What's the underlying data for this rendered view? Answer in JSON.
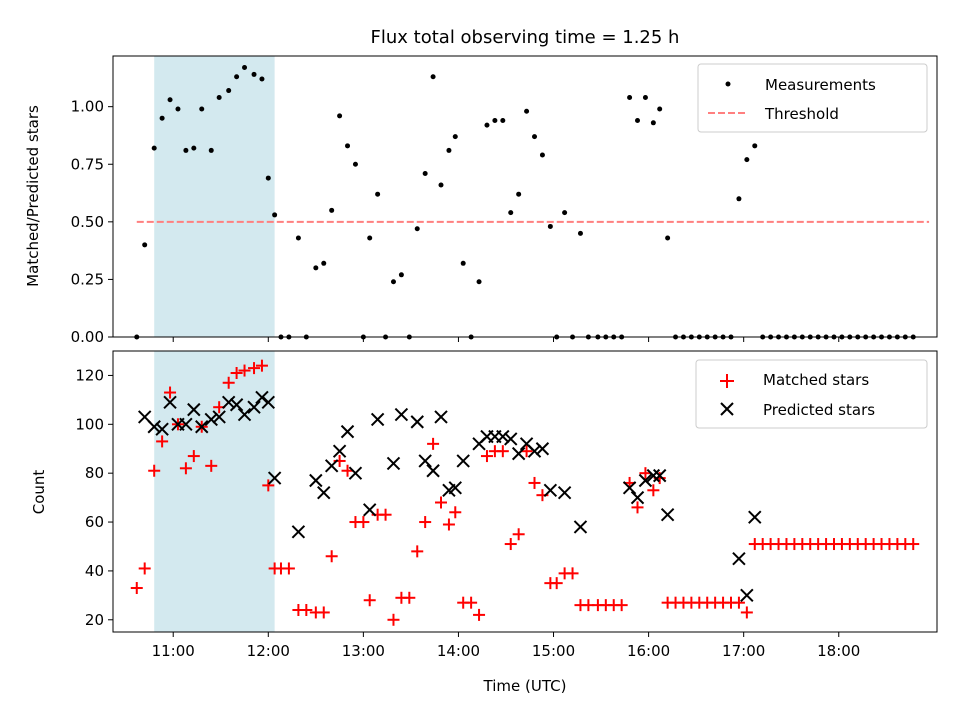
{
  "chart_data": [
    {
      "type": "scatter",
      "title": "Flux total observing time = 1.25 h",
      "ylabel": "Matched/Predicted stars",
      "ylim": [
        0,
        1.22
      ],
      "yticks": [
        "0.00",
        "0.25",
        "0.50",
        "0.75",
        "1.00"
      ],
      "xlim": [
        "10:22",
        "19:02"
      ],
      "shaded_span": [
        "10:48",
        "12:04"
      ],
      "shade_color": "#d3e9ef",
      "legend": {
        "position": "top-right",
        "entries": [
          {
            "label": "Measurements",
            "marker": "dot",
            "color": "#000000"
          },
          {
            "label": "Threshold",
            "marker": "dashed-line",
            "color": "#ff7f7f"
          }
        ]
      },
      "threshold": {
        "value": 0.5,
        "x": [
          "10:37",
          "18:57"
        ],
        "color": "#ff7f7f"
      },
      "series": [
        {
          "name": "Measurements",
          "color": "#000000",
          "points": [
            [
              "10:37",
              0.0
            ],
            [
              "10:42",
              0.4
            ],
            [
              "10:48",
              0.82
            ],
            [
              "10:53",
              0.95
            ],
            [
              "10:58",
              1.03
            ],
            [
              "11:03",
              0.99
            ],
            [
              "11:08",
              0.81
            ],
            [
              "11:13",
              0.82
            ],
            [
              "11:18",
              0.99
            ],
            [
              "11:24",
              0.81
            ],
            [
              "11:29",
              1.04
            ],
            [
              "11:35",
              1.07
            ],
            [
              "11:40",
              1.13
            ],
            [
              "11:45",
              1.17
            ],
            [
              "11:51",
              1.14
            ],
            [
              "11:56",
              1.12
            ],
            [
              "12:00",
              0.69
            ],
            [
              "12:04",
              0.53
            ],
            [
              "12:08",
              0.0
            ],
            [
              "12:13",
              0.0
            ],
            [
              "12:19",
              0.43
            ],
            [
              "12:24",
              0.0
            ],
            [
              "12:30",
              0.3
            ],
            [
              "12:35",
              0.32
            ],
            [
              "12:40",
              0.55
            ],
            [
              "12:45",
              0.96
            ],
            [
              "12:50",
              0.83
            ],
            [
              "12:55",
              0.75
            ],
            [
              "13:00",
              0.0
            ],
            [
              "13:04",
              0.43
            ],
            [
              "13:09",
              0.62
            ],
            [
              "13:14",
              0.0
            ],
            [
              "13:19",
              0.24
            ],
            [
              "13:24",
              0.27
            ],
            [
              "13:29",
              0.0
            ],
            [
              "13:34",
              0.47
            ],
            [
              "13:39",
              0.71
            ],
            [
              "13:44",
              1.13
            ],
            [
              "13:49",
              0.66
            ],
            [
              "13:54",
              0.81
            ],
            [
              "13:58",
              0.87
            ],
            [
              "14:03",
              0.32
            ],
            [
              "14:08",
              0.0
            ],
            [
              "14:13",
              0.24
            ],
            [
              "14:18",
              0.92
            ],
            [
              "14:23",
              0.94
            ],
            [
              "14:28",
              0.94
            ],
            [
              "14:33",
              0.54
            ],
            [
              "14:38",
              0.62
            ],
            [
              "14:43",
              0.98
            ],
            [
              "14:48",
              0.87
            ],
            [
              "14:53",
              0.79
            ],
            [
              "14:58",
              0.48
            ],
            [
              "15:02",
              0.0
            ],
            [
              "15:07",
              0.54
            ],
            [
              "15:12",
              0.0
            ],
            [
              "15:17",
              0.45
            ],
            [
              "15:22",
              0.0
            ],
            [
              "15:28",
              0.0
            ],
            [
              "15:33",
              0.0
            ],
            [
              "15:38",
              0.0
            ],
            [
              "15:43",
              0.0
            ],
            [
              "15:48",
              1.04
            ],
            [
              "15:53",
              0.94
            ],
            [
              "15:58",
              1.04
            ],
            [
              "16:03",
              0.93
            ],
            [
              "16:07",
              0.99
            ],
            [
              "16:12",
              0.43
            ],
            [
              "16:17",
              0.0
            ],
            [
              "16:22",
              0.0
            ],
            [
              "16:27",
              0.0
            ],
            [
              "16:32",
              0.0
            ],
            [
              "16:37",
              0.0
            ],
            [
              "16:42",
              0.0
            ],
            [
              "16:47",
              0.0
            ],
            [
              "16:52",
              0.0
            ],
            [
              "16:57",
              0.6
            ],
            [
              "17:02",
              0.77
            ],
            [
              "17:07",
              0.83
            ],
            [
              "17:12",
              0.0
            ],
            [
              "17:17",
              0.0
            ],
            [
              "17:22",
              0.0
            ],
            [
              "17:27",
              0.0
            ],
            [
              "17:32",
              0.0
            ],
            [
              "17:37",
              0.0
            ],
            [
              "17:42",
              0.0
            ],
            [
              "17:47",
              0.0
            ],
            [
              "17:52",
              0.0
            ],
            [
              "17:57",
              0.0
            ],
            [
              "18:02",
              0.0
            ],
            [
              "18:07",
              0.0
            ],
            [
              "18:12",
              0.0
            ],
            [
              "18:17",
              0.0
            ],
            [
              "18:22",
              0.0
            ],
            [
              "18:27",
              0.0
            ],
            [
              "18:32",
              0.0
            ],
            [
              "18:37",
              0.0
            ],
            [
              "18:42",
              0.0
            ],
            [
              "18:47",
              0.0
            ]
          ]
        }
      ]
    },
    {
      "type": "scatter",
      "xlabel": "Time (UTC)",
      "ylabel": "Count",
      "ylim": [
        15,
        130
      ],
      "yticks": [
        "20",
        "40",
        "60",
        "80",
        "100",
        "120"
      ],
      "xlim": [
        "10:22",
        "19:02"
      ],
      "xticks": [
        "11:00",
        "12:00",
        "13:00",
        "14:00",
        "15:00",
        "16:00",
        "17:00",
        "18:00"
      ],
      "shaded_span": [
        "10:48",
        "12:04"
      ],
      "shade_color": "#d3e9ef",
      "legend": {
        "position": "top-right",
        "entries": [
          {
            "label": "Matched stars",
            "marker": "plus",
            "color": "#ff0000"
          },
          {
            "label": "Predicted stars",
            "marker": "x",
            "color": "#000000"
          }
        ]
      },
      "series": [
        {
          "name": "Matched stars",
          "color": "#ff0000",
          "points": [
            [
              "10:37",
              33
            ],
            [
              "10:42",
              41
            ],
            [
              "10:48",
              81
            ],
            [
              "10:53",
              93
            ],
            [
              "10:58",
              113
            ],
            [
              "11:03",
              100
            ],
            [
              "11:08",
              82
            ],
            [
              "11:13",
              87
            ],
            [
              "11:18",
              99
            ],
            [
              "11:24",
              83
            ],
            [
              "11:29",
              107
            ],
            [
              "11:35",
              117
            ],
            [
              "11:40",
              121
            ],
            [
              "11:45",
              122
            ],
            [
              "11:51",
              123
            ],
            [
              "11:56",
              124
            ],
            [
              "12:00",
              75
            ],
            [
              "12:04",
              41
            ],
            [
              "12:08",
              41
            ],
            [
              "12:13",
              41
            ],
            [
              "12:19",
              24
            ],
            [
              "12:24",
              24
            ],
            [
              "12:30",
              23
            ],
            [
              "12:35",
              23
            ],
            [
              "12:40",
              46
            ],
            [
              "12:45",
              85
            ],
            [
              "12:50",
              81
            ],
            [
              "12:55",
              60
            ],
            [
              "13:00",
              60
            ],
            [
              "13:04",
              28
            ],
            [
              "13:09",
              63
            ],
            [
              "13:14",
              63
            ],
            [
              "13:19",
              20
            ],
            [
              "13:24",
              29
            ],
            [
              "13:29",
              29
            ],
            [
              "13:34",
              48
            ],
            [
              "13:39",
              60
            ],
            [
              "13:44",
              92
            ],
            [
              "13:49",
              68
            ],
            [
              "13:54",
              59
            ],
            [
              "13:58",
              64
            ],
            [
              "14:03",
              27
            ],
            [
              "14:08",
              27
            ],
            [
              "14:13",
              22
            ],
            [
              "14:18",
              87
            ],
            [
              "14:23",
              89
            ],
            [
              "14:28",
              89
            ],
            [
              "14:33",
              51
            ],
            [
              "14:38",
              55
            ],
            [
              "14:43",
              89
            ],
            [
              "14:48",
              76
            ],
            [
              "14:53",
              71
            ],
            [
              "14:58",
              35
            ],
            [
              "15:02",
              35
            ],
            [
              "15:07",
              39
            ],
            [
              "15:12",
              39
            ],
            [
              "15:17",
              26
            ],
            [
              "15:22",
              26
            ],
            [
              "15:28",
              26
            ],
            [
              "15:33",
              26
            ],
            [
              "15:38",
              26
            ],
            [
              "15:43",
              26
            ],
            [
              "15:48",
              76
            ],
            [
              "15:53",
              66
            ],
            [
              "15:58",
              80
            ],
            [
              "16:03",
              73
            ],
            [
              "16:07",
              78
            ],
            [
              "16:12",
              27
            ],
            [
              "16:17",
              27
            ],
            [
              "16:22",
              27
            ],
            [
              "16:27",
              27
            ],
            [
              "16:32",
              27
            ],
            [
              "16:37",
              27
            ],
            [
              "16:42",
              27
            ],
            [
              "16:47",
              27
            ],
            [
              "16:52",
              27
            ],
            [
              "16:57",
              27
            ],
            [
              "17:02",
              23
            ],
            [
              "17:07",
              51
            ],
            [
              "17:12",
              51
            ],
            [
              "17:17",
              51
            ],
            [
              "17:22",
              51
            ],
            [
              "17:27",
              51
            ],
            [
              "17:32",
              51
            ],
            [
              "17:37",
              51
            ],
            [
              "17:42",
              51
            ],
            [
              "17:47",
              51
            ],
            [
              "17:52",
              51
            ],
            [
              "17:57",
              51
            ],
            [
              "18:02",
              51
            ],
            [
              "18:07",
              51
            ],
            [
              "18:12",
              51
            ],
            [
              "18:17",
              51
            ],
            [
              "18:22",
              51
            ],
            [
              "18:27",
              51
            ],
            [
              "18:32",
              51
            ],
            [
              "18:37",
              51
            ],
            [
              "18:42",
              51
            ],
            [
              "18:47",
              51
            ]
          ]
        },
        {
          "name": "Predicted stars",
          "color": "#000000",
          "points": [
            [
              "10:42",
              103
            ],
            [
              "10:48",
              99
            ],
            [
              "10:53",
              98
            ],
            [
              "10:58",
              109
            ],
            [
              "11:03",
              100
            ],
            [
              "11:08",
              100
            ],
            [
              "11:13",
              106
            ],
            [
              "11:18",
              99
            ],
            [
              "11:24",
              102
            ],
            [
              "11:29",
              103
            ],
            [
              "11:35",
              109
            ],
            [
              "11:40",
              108
            ],
            [
              "11:45",
              104
            ],
            [
              "11:51",
              107
            ],
            [
              "11:56",
              111
            ],
            [
              "12:00",
              109
            ],
            [
              "12:04",
              78
            ],
            [
              "12:19",
              56
            ],
            [
              "12:30",
              77
            ],
            [
              "12:35",
              72
            ],
            [
              "12:40",
              83
            ],
            [
              "12:45",
              89
            ],
            [
              "12:50",
              97
            ],
            [
              "12:55",
              80
            ],
            [
              "13:04",
              65
            ],
            [
              "13:09",
              102
            ],
            [
              "13:19",
              84
            ],
            [
              "13:24",
              104
            ],
            [
              "13:34",
              101
            ],
            [
              "13:39",
              85
            ],
            [
              "13:44",
              81
            ],
            [
              "13:49",
              103
            ],
            [
              "13:54",
              73
            ],
            [
              "13:58",
              74
            ],
            [
              "14:03",
              85
            ],
            [
              "14:13",
              92
            ],
            [
              "14:18",
              95
            ],
            [
              "14:23",
              95
            ],
            [
              "14:28",
              95
            ],
            [
              "14:33",
              94
            ],
            [
              "14:38",
              88
            ],
            [
              "14:43",
              92
            ],
            [
              "14:48",
              89
            ],
            [
              "14:53",
              90
            ],
            [
              "14:58",
              73
            ],
            [
              "15:07",
              72
            ],
            [
              "15:17",
              58
            ],
            [
              "15:48",
              74
            ],
            [
              "15:53",
              70
            ],
            [
              "15:58",
              77
            ],
            [
              "16:03",
              79
            ],
            [
              "16:07",
              79
            ],
            [
              "16:12",
              63
            ],
            [
              "16:57",
              45
            ],
            [
              "17:02",
              30
            ],
            [
              "17:07",
              62
            ]
          ]
        }
      ]
    }
  ]
}
